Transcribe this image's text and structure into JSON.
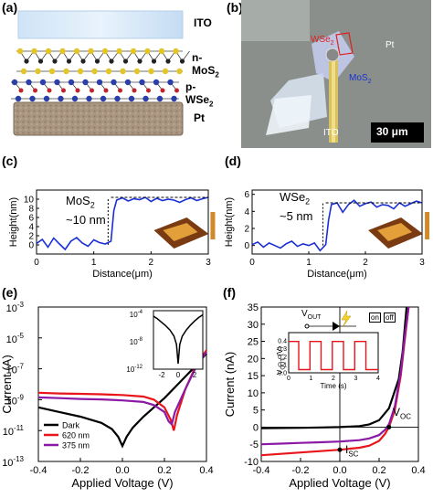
{
  "panels": {
    "a": {
      "label": "(a)",
      "layers": [
        "ITO",
        "n-MoS",
        "p-WSe",
        "Pt"
      ],
      "subscript": "2"
    },
    "b": {
      "label": "(b)",
      "labels": {
        "wse2": "WSe",
        "pt": "Pt",
        "mos2": "MoS",
        "ito": "ITO",
        "scale": "30 μm"
      },
      "subscript": "2"
    },
    "c": {
      "label": "(c)",
      "annotation_material": "MoS",
      "annotation_sub": "2",
      "annotation_value": "~10 nm"
    },
    "d": {
      "label": "(d)",
      "annotation_material": "WSe",
      "annotation_sub": "2",
      "annotation_value": "~5 nm"
    },
    "e": {
      "label": "(e)"
    },
    "f": {
      "label": "(f)",
      "voc": "V",
      "voc_sub": "OC",
      "isc": "I",
      "isc_sub": "SC",
      "vout": "V",
      "vout_sub": "OUT",
      "on": "on",
      "off": "off",
      "inset_xlabel": "Time (s)",
      "inset_ylabel": "V",
      "inset_ylabel_sub": "OUT",
      "inset_ylabel_unit": "(V)"
    }
  },
  "colors": {
    "blue": "#1a2fd6",
    "black": "#000000",
    "red": "#e8151b",
    "purple": "#8a1aa6"
  },
  "chart_data": [
    {
      "id": "c",
      "type": "line",
      "xlabel": "Distance(μm)",
      "ylabel": "Height(nm)",
      "xlim": [
        0,
        3
      ],
      "ylim": [
        -2,
        12
      ],
      "xticks": [
        0,
        1,
        2,
        3
      ],
      "yticks": [
        0,
        2,
        4,
        6,
        8,
        10
      ],
      "series": [
        {
          "color": "#1a2fd6",
          "x": [
            0,
            0.1,
            0.2,
            0.3,
            0.4,
            0.5,
            0.6,
            0.7,
            0.8,
            0.9,
            1.0,
            1.1,
            1.2,
            1.3,
            1.35,
            1.4,
            1.5,
            1.6,
            1.7,
            1.8,
            1.9,
            2.0,
            2.1,
            2.2,
            2.3,
            2.4,
            2.5,
            2.6,
            2.7,
            2.8,
            2.9,
            3.0
          ],
          "y": [
            0.3,
            1.2,
            -0.5,
            1.5,
            0.2,
            -1.0,
            0.8,
            1.6,
            0.4,
            -0.3,
            1.1,
            0.5,
            0.2,
            0.8,
            7.5,
            9.8,
            10.3,
            9.6,
            10.1,
            9.9,
            10.4,
            9.5,
            10.2,
            9.7,
            10.0,
            9.8,
            9.3,
            9.9,
            10.3,
            9.7,
            10.1,
            10.4
          ]
        }
      ]
    },
    {
      "id": "d",
      "type": "line",
      "xlabel": "Distance(μm)",
      "ylabel": "Height(nm)",
      "xlim": [
        0,
        3
      ],
      "ylim": [
        -1,
        6.5
      ],
      "xticks": [
        0,
        1,
        2,
        3
      ],
      "yticks": [
        0,
        2,
        4,
        6
      ],
      "series": [
        {
          "color": "#1a2fd6",
          "x": [
            0,
            0.1,
            0.2,
            0.3,
            0.4,
            0.5,
            0.6,
            0.7,
            0.8,
            0.9,
            1.0,
            1.1,
            1.2,
            1.3,
            1.35,
            1.4,
            1.5,
            1.6,
            1.7,
            1.8,
            1.9,
            2.0,
            2.1,
            2.2,
            2.3,
            2.4,
            2.5,
            2.6,
            2.7,
            2.8,
            2.9,
            3.0
          ],
          "y": [
            0.1,
            0.4,
            -0.2,
            0.3,
            0.0,
            -0.3,
            0.2,
            0.5,
            -0.1,
            0.2,
            0.0,
            0.3,
            -0.6,
            0.1,
            3.0,
            4.8,
            5.0,
            3.9,
            4.8,
            5.3,
            4.6,
            4.9,
            5.1,
            4.5,
            4.8,
            4.7,
            4.3,
            5.0,
            4.6,
            4.9,
            5.2,
            5.0
          ]
        }
      ]
    },
    {
      "id": "e",
      "type": "line",
      "xlabel": "Applied Voltage (V)",
      "ylabel": "Current (A)",
      "xlim": [
        -0.4,
        0.4
      ],
      "ylim_log10": [
        -13,
        -3
      ],
      "yscale": "log",
      "xticks": [
        -0.4,
        -0.2,
        0.0,
        0.2,
        0.4
      ],
      "ytick_exponents": [
        -13,
        -11,
        -9,
        -7,
        -5,
        -3
      ],
      "legend": "bottom-left",
      "series": [
        {
          "name": "Dark",
          "color": "#000000",
          "x": [
            -0.4,
            -0.3,
            -0.2,
            -0.1,
            -0.05,
            -0.02,
            0.0,
            0.02,
            0.05,
            0.1,
            0.15,
            0.2,
            0.25,
            0.3,
            0.35,
            0.4
          ],
          "log10y": [
            -9.5,
            -9.8,
            -10.1,
            -10.5,
            -10.9,
            -11.4,
            -12.0,
            -11.4,
            -10.8,
            -10.1,
            -9.5,
            -8.9,
            -8.2,
            -7.5,
            -6.8,
            -6.0
          ]
        },
        {
          "name": "620 nm",
          "color": "#e8151b",
          "x": [
            -0.4,
            -0.3,
            -0.2,
            -0.1,
            0.0,
            0.1,
            0.15,
            0.2,
            0.23,
            0.245,
            0.26,
            0.3,
            0.35,
            0.4
          ],
          "log10y": [
            -8.55,
            -8.6,
            -8.62,
            -8.65,
            -8.7,
            -8.8,
            -9.0,
            -9.5,
            -10.3,
            -11.0,
            -10.0,
            -8.3,
            -6.8,
            -5.8
          ]
        },
        {
          "name": "375 nm",
          "color": "#8a1aa6",
          "x": [
            -0.4,
            -0.3,
            -0.2,
            -0.1,
            0.0,
            0.1,
            0.15,
            0.2,
            0.22,
            0.235,
            0.25,
            0.3,
            0.35,
            0.4
          ],
          "log10y": [
            -8.85,
            -8.9,
            -8.95,
            -8.98,
            -9.05,
            -9.15,
            -9.35,
            -9.8,
            -10.4,
            -10.6,
            -9.8,
            -8.3,
            -6.9,
            -5.9
          ]
        }
      ],
      "inset": {
        "xlim": [
          -3,
          3
        ],
        "xticks": [
          -2,
          0,
          2
        ],
        "ylim_log10": [
          -12,
          -3.5
        ],
        "ytick_exponents": [
          -12,
          -8,
          -4
        ],
        "x": [
          -3,
          -2.5,
          -2,
          -1.5,
          -1,
          -0.5,
          -0.2,
          0,
          0.2,
          0.5,
          1,
          1.5,
          2,
          2.5,
          3
        ],
        "log10y": [
          -4.3,
          -4.7,
          -5.2,
          -5.7,
          -6.3,
          -7.2,
          -8.4,
          -11.2,
          -8.4,
          -7.2,
          -6.3,
          -5.6,
          -5.0,
          -4.5,
          -4.1
        ]
      }
    },
    {
      "id": "f",
      "type": "line",
      "xlabel": "Applied Voltage (V)",
      "ylabel": "Current (nA)",
      "xlim": [
        -0.4,
        0.4
      ],
      "ylim": [
        -10,
        35
      ],
      "xticks": [
        -0.4,
        -0.2,
        0.0,
        0.2,
        0.4
      ],
      "yticks": [
        -10,
        -5,
        0,
        5,
        10,
        15,
        20,
        25,
        30,
        35
      ],
      "series": [
        {
          "name": "Dark",
          "color": "#000000",
          "x": [
            -0.4,
            -0.3,
            -0.2,
            -0.1,
            0.0,
            0.1,
            0.15,
            0.2,
            0.25,
            0.3,
            0.32,
            0.34
          ],
          "y": [
            -0.3,
            -0.25,
            -0.2,
            -0.1,
            0.0,
            0.3,
            0.8,
            2.0,
            5.5,
            14,
            22,
            35
          ]
        },
        {
          "name": "620 nm",
          "color": "#e8151b",
          "x": [
            -0.4,
            -0.3,
            -0.2,
            -0.1,
            0.0,
            0.1,
            0.15,
            0.2,
            0.23,
            0.25,
            0.28,
            0.31,
            0.33,
            0.35
          ],
          "y": [
            -8.2,
            -7.8,
            -7.4,
            -7.0,
            -6.6,
            -6.0,
            -5.4,
            -4.0,
            -2.0,
            0.0,
            5,
            15,
            25,
            35
          ]
        },
        {
          "name": "375 nm",
          "color": "#8a1aa6",
          "x": [
            -0.4,
            -0.3,
            -0.2,
            -0.1,
            0.0,
            0.1,
            0.15,
            0.2,
            0.23,
            0.25,
            0.28,
            0.31,
            0.33,
            0.35
          ],
          "y": [
            -5.0,
            -4.8,
            -4.6,
            -4.4,
            -4.2,
            -3.8,
            -3.3,
            -2.3,
            -0.8,
            0.8,
            6,
            16,
            26,
            35
          ]
        }
      ],
      "inset": {
        "xlim": [
          0,
          4
        ],
        "ylim": [
          0,
          0.5
        ],
        "xticks": [
          0,
          1,
          2,
          3,
          4
        ],
        "yticks": [
          0.0,
          0.1,
          0.2,
          0.3,
          0.4
        ],
        "x": [
          0,
          0.45,
          0.45,
          0.95,
          0.95,
          1.45,
          1.45,
          1.95,
          1.95,
          2.45,
          2.45,
          2.95,
          2.95,
          3.45,
          3.45,
          4.0
        ],
        "y": [
          0.39,
          0.39,
          0.04,
          0.04,
          0.39,
          0.39,
          0.04,
          0.04,
          0.39,
          0.39,
          0.04,
          0.04,
          0.39,
          0.39,
          0.04,
          0.04
        ]
      }
    }
  ]
}
